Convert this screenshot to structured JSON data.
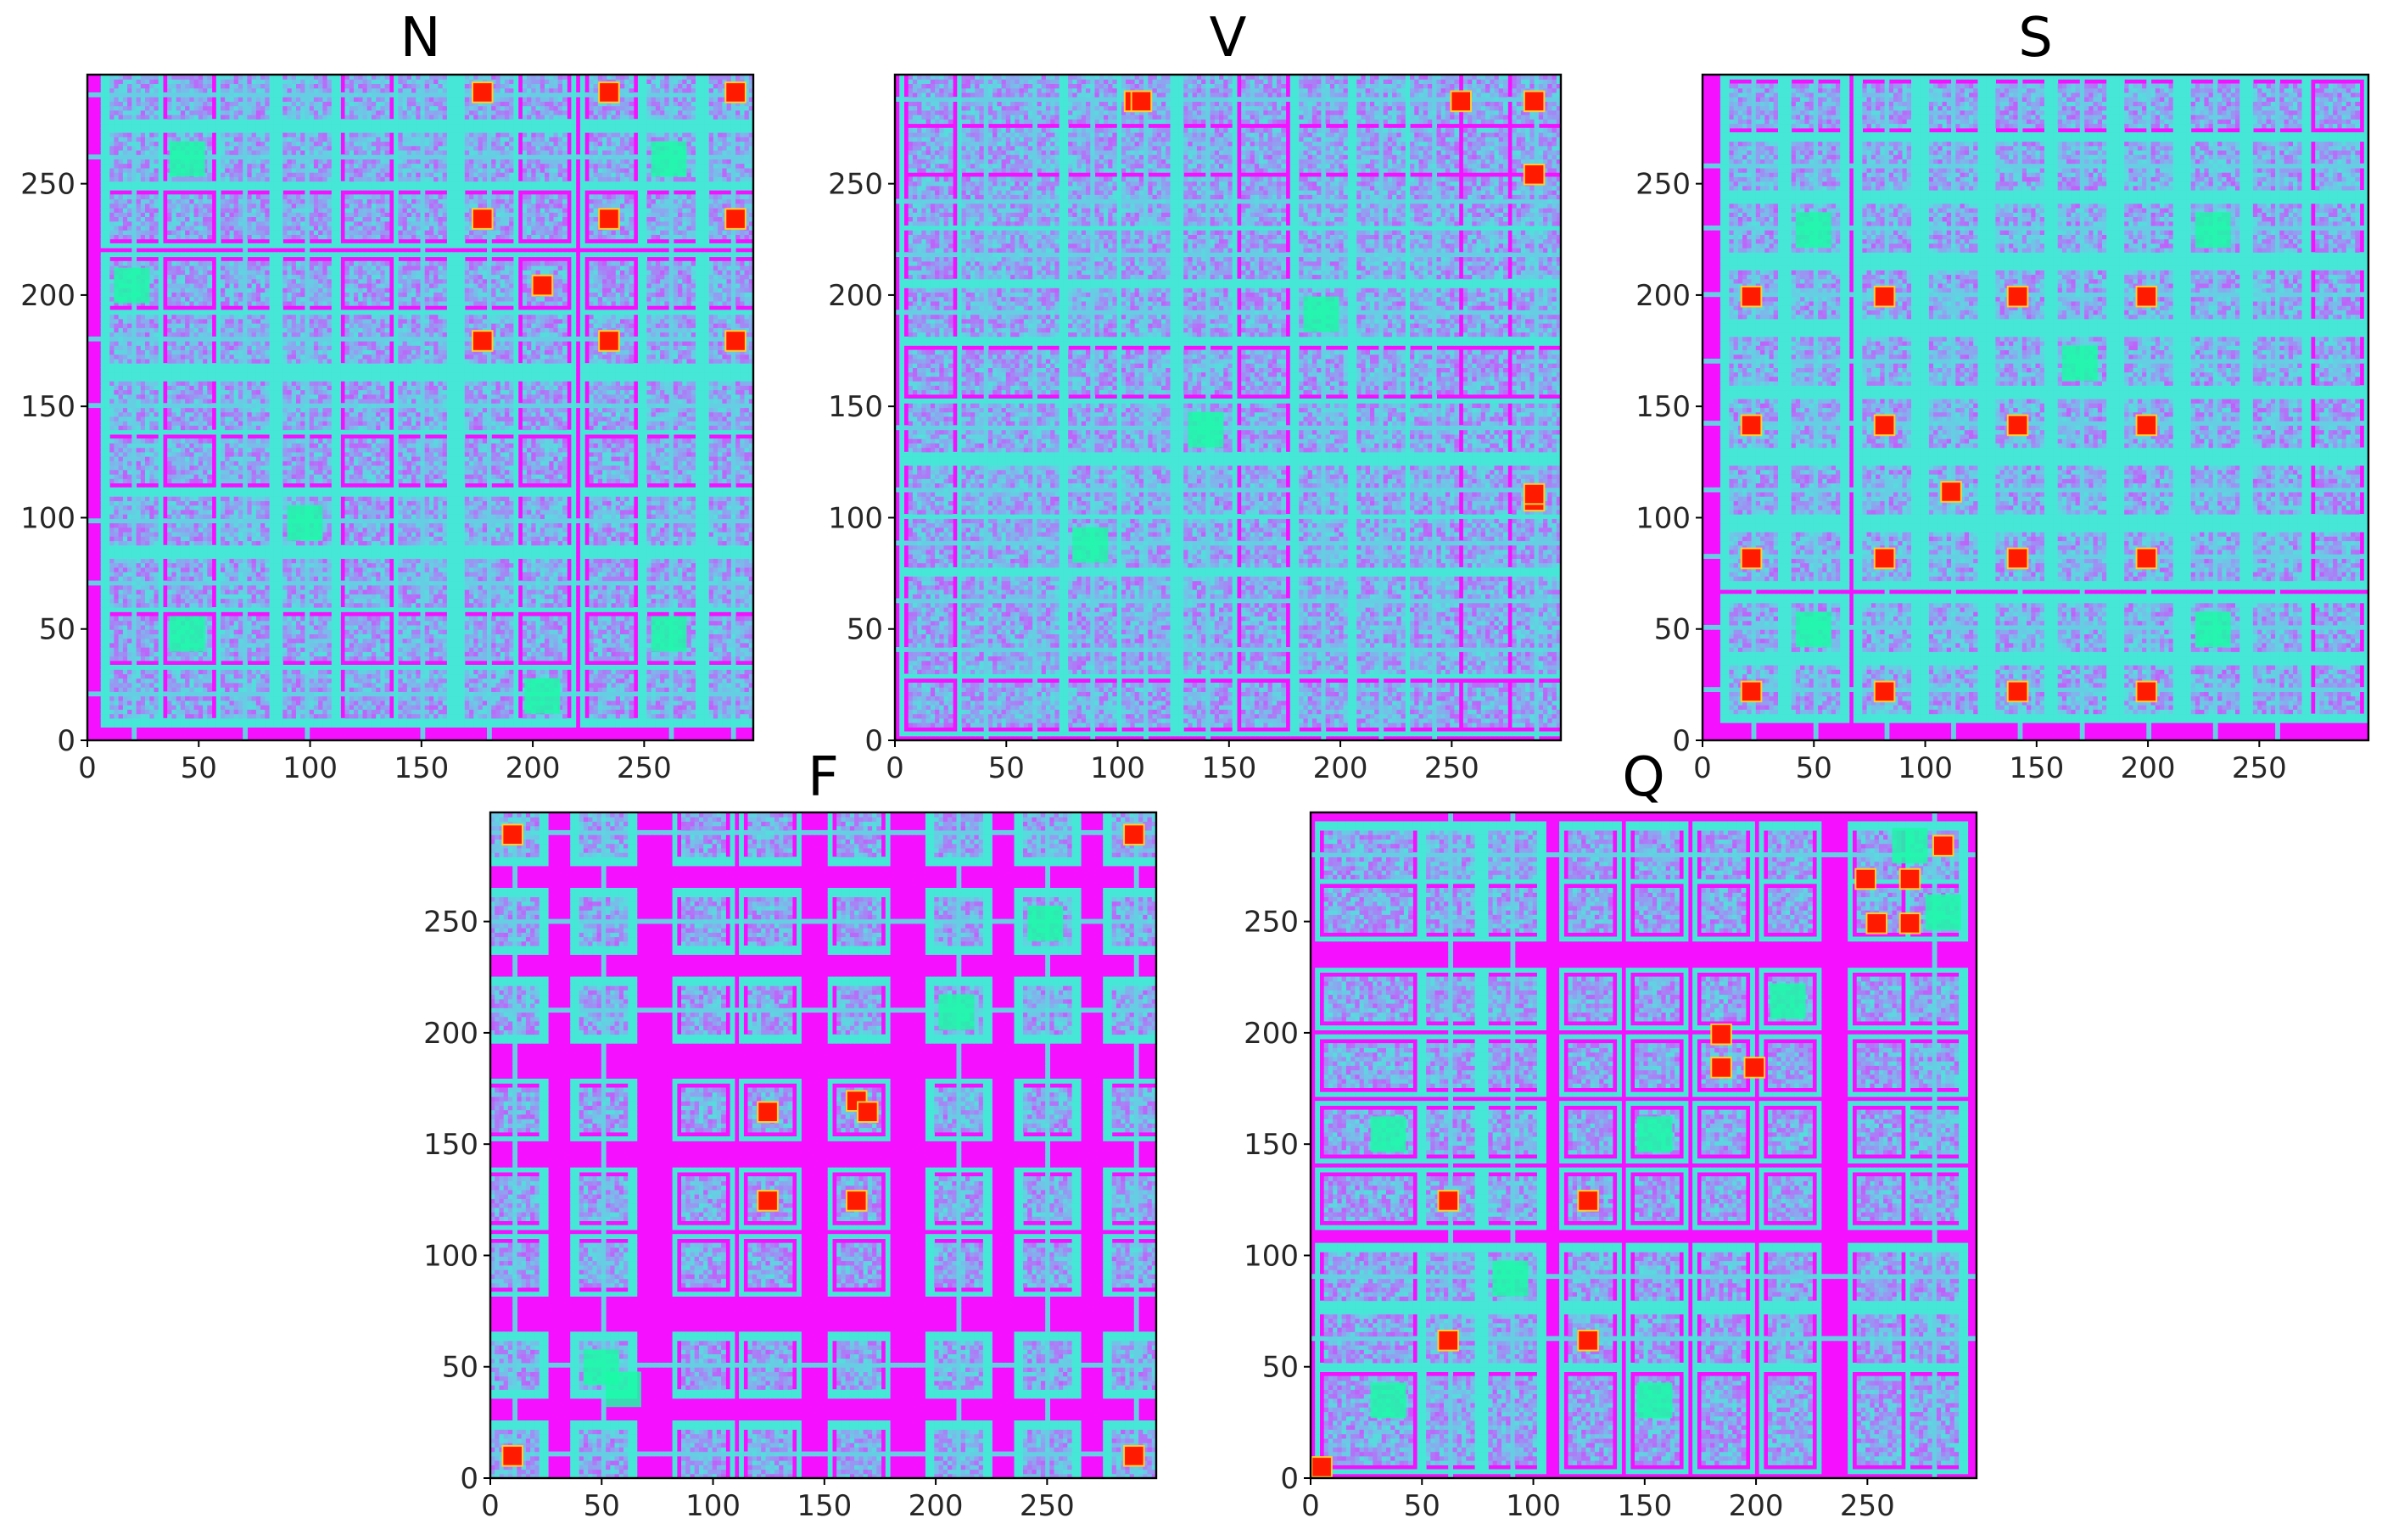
{
  "chart_data": [
    {
      "type": "heatmap",
      "title": "N",
      "xlim": [
        0,
        299
      ],
      "ylim": [
        0,
        299
      ],
      "xticks": [
        0,
        50,
        100,
        150,
        200,
        250
      ],
      "yticks": [
        0,
        50,
        100,
        150,
        200,
        250
      ],
      "colormap": "rainbow",
      "block_centers": [
        20,
        45,
        70,
        98,
        125,
        150,
        180,
        205,
        235,
        262,
        290
      ],
      "red_blocks": [
        [
          178,
          180
        ],
        [
          178,
          235
        ],
        [
          178,
          292
        ],
        [
          235,
          180
        ],
        [
          235,
          235
        ],
        [
          235,
          292
        ],
        [
          292,
          180
        ],
        [
          292,
          235
        ],
        [
          292,
          292
        ],
        [
          205,
          205
        ]
      ],
      "yellow_blocks": [
        [
          20,
          205
        ],
        [
          45,
          48
        ],
        [
          45,
          262
        ],
        [
          98,
          98
        ],
        [
          262,
          48
        ],
        [
          262,
          262
        ],
        [
          205,
          20
        ]
      ]
    },
    {
      "type": "heatmap",
      "title": "V",
      "xlim": [
        0,
        299
      ],
      "ylim": [
        0,
        299
      ],
      "xticks": [
        0,
        50,
        100,
        150,
        200,
        250
      ],
      "yticks": [
        0,
        50,
        100,
        150,
        200,
        250
      ],
      "colormap": "rainbow",
      "block_centers": [
        15,
        40,
        62,
        88,
        112,
        140,
        165,
        192,
        218,
        242,
        265,
        288
      ],
      "red_blocks": [
        [
          108,
          288
        ],
        [
          288,
          108
        ],
        [
          288,
          288
        ],
        [
          111,
          288
        ],
        [
          288,
          111
        ],
        [
          255,
          288
        ],
        [
          288,
          255
        ]
      ],
      "yellow_blocks": [
        [
          140,
          140
        ],
        [
          192,
          192
        ],
        [
          88,
          88
        ]
      ]
    },
    {
      "type": "heatmap",
      "title": "S",
      "xlim": [
        0,
        299
      ],
      "ylim": [
        0,
        299
      ],
      "xticks": [
        0,
        50,
        100,
        150,
        200,
        250
      ],
      "yticks": [
        0,
        50,
        100,
        150,
        200,
        250
      ],
      "colormap": "rainbow",
      "block_centers": [
        22,
        50,
        82,
        112,
        142,
        170,
        200,
        230,
        258,
        285
      ],
      "red_blocks": [
        [
          22,
          200
        ],
        [
          22,
          142
        ],
        [
          22,
          82
        ],
        [
          22,
          22
        ],
        [
          82,
          200
        ],
        [
          82,
          142
        ],
        [
          82,
          82
        ],
        [
          82,
          22
        ],
        [
          142,
          200
        ],
        [
          142,
          142
        ],
        [
          142,
          82
        ],
        [
          142,
          22
        ],
        [
          200,
          200
        ],
        [
          200,
          142
        ],
        [
          200,
          82
        ],
        [
          200,
          22
        ],
        [
          112,
          112
        ]
      ],
      "yellow_blocks": [
        [
          50,
          50
        ],
        [
          170,
          170
        ],
        [
          230,
          230
        ],
        [
          50,
          230
        ],
        [
          230,
          50
        ]
      ]
    },
    {
      "type": "heatmap",
      "title": "F",
      "xlim": [
        0,
        299
      ],
      "ylim": [
        0,
        299
      ],
      "xticks": [
        0,
        50,
        100,
        150,
        200,
        250
      ],
      "yticks": [
        0,
        50,
        100,
        150,
        200,
        250
      ],
      "colormap": "rainbow",
      "block_centers": [
        10,
        50,
        95,
        125,
        165,
        210,
        250,
        290
      ],
      "red_blocks": [
        [
          10,
          10
        ],
        [
          125,
          165
        ],
        [
          165,
          125
        ],
        [
          165,
          170
        ],
        [
          125,
          125
        ],
        [
          170,
          165
        ],
        [
          290,
          290
        ],
        [
          290,
          10
        ],
        [
          10,
          290
        ]
      ],
      "yellow_blocks": [
        [
          50,
          50
        ],
        [
          60,
          40
        ],
        [
          250,
          250
        ],
        [
          210,
          210
        ]
      ]
    },
    {
      "type": "heatmap",
      "title": "Q",
      "xlim": [
        0,
        299
      ],
      "ylim": [
        0,
        299
      ],
      "xticks": [
        0,
        50,
        100,
        150,
        200,
        250
      ],
      "yticks": [
        0,
        50,
        100,
        150,
        200,
        250
      ],
      "colormap": "rainbow",
      "block_centers": [
        15,
        35,
        62,
        90,
        125,
        155,
        185,
        215,
        255,
        280
      ],
      "red_blocks": [
        [
          5,
          5
        ],
        [
          62,
          62
        ],
        [
          62,
          125
        ],
        [
          125,
          62
        ],
        [
          125,
          125
        ],
        [
          185,
          185
        ],
        [
          185,
          200
        ],
        [
          200,
          185
        ],
        [
          255,
          250
        ],
        [
          270,
          270
        ],
        [
          250,
          270
        ],
        [
          270,
          250
        ],
        [
          285,
          285
        ]
      ],
      "yellow_blocks": [
        [
          35,
          35
        ],
        [
          90,
          90
        ],
        [
          155,
          155
        ],
        [
          215,
          215
        ],
        [
          35,
          155
        ],
        [
          155,
          35
        ],
        [
          270,
          285
        ],
        [
          285,
          255
        ]
      ]
    }
  ]
}
